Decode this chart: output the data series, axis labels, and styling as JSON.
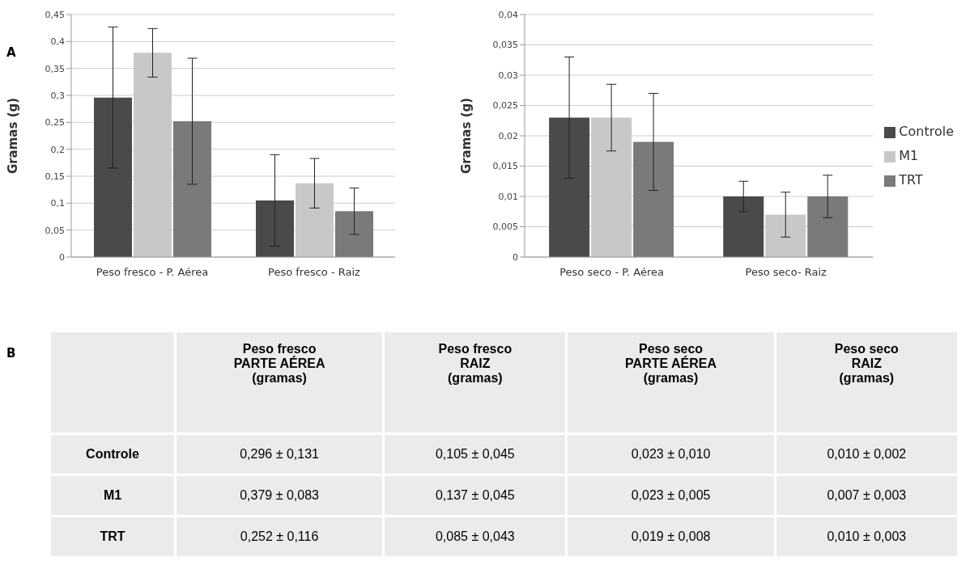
{
  "chart_data": [
    {
      "type": "bar",
      "ylabel": "Gramas (g)",
      "annotations": [
        "A"
      ],
      "categories": [
        "Peso fresco - P. Aérea",
        "Peso fresco - Raiz"
      ],
      "series": [
        {
          "color": "#4a4a4a",
          "values": [
            0.296,
            0.105
          ],
          "errors": [
            0.131,
            0.085
          ]
        },
        {
          "color": "#c8c8c8",
          "values": [
            0.379,
            0.137
          ],
          "errors": [
            0.045,
            0.046
          ]
        },
        {
          "color": "#7a7a7a",
          "values": [
            0.252,
            0.085
          ],
          "errors": [
            0.117,
            0.043
          ]
        }
      ],
      "ylim": [
        0,
        0.45
      ],
      "yticks": [
        0,
        {
          "value": 0.05,
          "label": "0,05"
        },
        {
          "value": 0.1,
          "label": "0,1"
        },
        {
          "value": 0.15,
          "label": "0,15"
        },
        {
          "value": 0.2,
          "label": "0,2"
        },
        {
          "value": 0.25,
          "label": "0,25"
        },
        {
          "value": 0.3,
          "label": "0,3"
        },
        {
          "value": 0.35,
          "label": "0,35"
        },
        {
          "value": 0.4,
          "label": "0,4"
        },
        {
          "value": 0.45,
          "label": "0,45"
        }
      ],
      "grid": "y",
      "legend": false
    },
    {
      "type": "bar",
      "ylabel": "Gramas (g)",
      "categories": [
        "Peso seco - P. Aérea",
        "Peso seco- Raiz"
      ],
      "series": [
        {
          "name": "Controle",
          "color": "#4a4a4a",
          "values": [
            0.023,
            0.01
          ],
          "errors": [
            0.01,
            0.0025
          ]
        },
        {
          "name": "M1",
          "color": "#c8c8c8",
          "values": [
            0.023,
            0.007
          ],
          "errors": [
            0.0055,
            0.0037
          ]
        },
        {
          "name": "TRT",
          "color": "#7a7a7a",
          "values": [
            0.019,
            0.01
          ],
          "errors": [
            0.008,
            0.0035
          ]
        }
      ],
      "ylim": [
        0,
        0.04
      ],
      "yticks": [
        0,
        {
          "value": 0.005,
          "label": "0,005"
        },
        {
          "value": 0.01,
          "label": "0,01"
        },
        {
          "value": 0.015,
          "label": "0,015"
        },
        {
          "value": 0.02,
          "label": "0,02"
        },
        {
          "value": 0.025,
          "label": "0,025"
        },
        {
          "value": 0.03,
          "label": "0,03"
        },
        {
          "value": 0.035,
          "label": "0,035"
        },
        {
          "value": 0.04,
          "label": "0,04"
        }
      ],
      "grid": "y",
      "legend": "right"
    },
    {
      "type": "other",
      "annotations": [
        "B"
      ],
      "categories": [
        "Peso fresco\nPARTE AÉREA\n(gramas)",
        "Peso fresco\nRAIZ\n(gramas)",
        "Peso seco\nPARTE AÉREA\n(gramas)",
        "Peso seco\nRAIZ\n(gramas)"
      ],
      "y_categories": [
        "Controle",
        "M1",
        "TRT"
      ],
      "cell_labels": [
        [
          "0,296 ± 0,131",
          "0,105 ± 0,045",
          "0,023 ± 0,010",
          "0,010 ± 0,002"
        ],
        [
          "0,379 ± 0,083",
          "0,137 ± 0,045",
          "0,023 ± 0,005",
          "0,007 ± 0,003"
        ],
        [
          "0,252 ± 0,116",
          "0,085 ± 0,043",
          "0,019 ± 0,008",
          "0,010 ± 0,003"
        ]
      ]
    }
  ]
}
